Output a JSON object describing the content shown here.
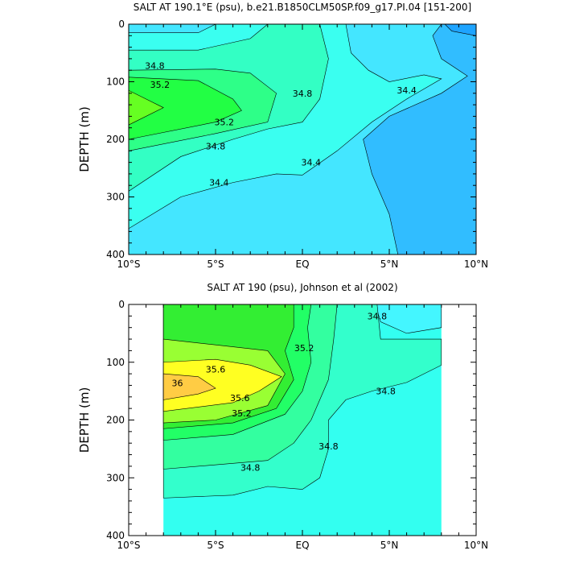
{
  "chart_data": [
    {
      "type": "contour",
      "title": "SALT AT 190.1°E (psu), b.e21.B1850CLM50SP.f09_g17.PI.04 [151-200]",
      "y_label": "DEPTH (m)",
      "xlim": [
        -10,
        10
      ],
      "ylim": [
        0,
        400
      ],
      "y_inverted": true,
      "xticks": [
        {
          "value": -10,
          "label": "10°S"
        },
        {
          "value": -5,
          "label": "5°S"
        },
        {
          "value": 0,
          "label": "EQ"
        },
        {
          "value": 5,
          "label": "5°N"
        },
        {
          "value": 10,
          "label": "10°N"
        }
      ],
      "yticks": [
        0,
        100,
        200,
        300,
        400
      ],
      "regions": [
        {
          "color": "#1ea4ff",
          "points": [
            [
              -10,
              0
            ],
            [
              10,
              0
            ],
            [
              10,
              400
            ],
            [
              -10,
              400
            ]
          ]
        },
        {
          "color": "#31bdff",
          "points": [
            [
              -10,
              0
            ],
            [
              8.2,
              0
            ],
            [
              8.6,
              12
            ],
            [
              10,
              20
            ],
            [
              10,
              400
            ],
            [
              -10,
              400
            ]
          ]
        },
        {
          "color": "#44e6ff",
          "points": [
            [
              -10,
              0
            ],
            [
              8,
              0
            ],
            [
              7.5,
              20
            ],
            [
              8,
              60
            ],
            [
              9.5,
              90
            ],
            [
              8,
              120
            ],
            [
              5,
              160
            ],
            [
              3.5,
              200
            ],
            [
              4,
              260
            ],
            [
              5,
              330
            ],
            [
              5.5,
              400
            ],
            [
              -10,
              400
            ]
          ]
        },
        {
          "color": "#3afff0",
          "points": [
            [
              -10,
              15
            ],
            [
              -6,
              15
            ],
            [
              -5,
              0
            ],
            [
              2.5,
              0
            ],
            [
              2.8,
              50
            ],
            [
              3.8,
              80
            ],
            [
              5,
              100
            ],
            [
              7,
              88
            ],
            [
              8,
              95
            ],
            [
              6,
              130
            ],
            [
              4,
              170
            ],
            [
              2,
              220
            ],
            [
              0,
              262
            ],
            [
              -1.5,
              260
            ],
            [
              -4,
              275
            ],
            [
              -7,
              300
            ],
            [
              -10,
              355
            ]
          ]
        },
        {
          "color": "#33ffc4",
          "points": [
            [
              -10,
              45
            ],
            [
              -6,
              45
            ],
            [
              -3,
              25
            ],
            [
              -2,
              0
            ],
            [
              1,
              0
            ],
            [
              1.5,
              60
            ],
            [
              1,
              130
            ],
            [
              0,
              170
            ],
            [
              -2,
              182
            ],
            [
              -4,
              200
            ],
            [
              -7,
              230
            ],
            [
              -10,
              290
            ]
          ]
        },
        {
          "color": "#2eff88",
          "points": [
            [
              -10,
              80
            ],
            [
              -5,
              78
            ],
            [
              -3,
              85
            ],
            [
              -1.5,
              120
            ],
            [
              -2,
              170
            ],
            [
              -5,
              190
            ],
            [
              -10,
              220
            ]
          ]
        },
        {
          "color": "#22ff44",
          "points": [
            [
              -10,
              92
            ],
            [
              -6,
              98
            ],
            [
              -4,
              130
            ],
            [
              -3.5,
              150
            ],
            [
              -5,
              170
            ],
            [
              -10,
              200
            ]
          ]
        },
        {
          "color": "#66ff22",
          "points": [
            [
              -10,
              115
            ],
            [
              -8,
              145
            ],
            [
              -10,
              175
            ]
          ]
        }
      ],
      "contour_labels": [
        {
          "value": 34.8,
          "x": -8.5,
          "y": 72
        },
        {
          "value": 35.2,
          "x": -8.2,
          "y": 105
        },
        {
          "value": 35.2,
          "x": -4.5,
          "y": 170
        },
        {
          "value": 34.8,
          "x": -5,
          "y": 212
        },
        {
          "value": 34.4,
          "x": -4.8,
          "y": 275
        },
        {
          "value": 34.4,
          "x": 0.5,
          "y": 240
        },
        {
          "value": 34.8,
          "x": 0,
          "y": 120
        },
        {
          "value": 34.4,
          "x": 6,
          "y": 115
        }
      ]
    },
    {
      "type": "contour",
      "title": "SALT AT 190 (psu), Johnson et al (2002)",
      "y_label": "DEPTH (m)",
      "xlim": [
        -10,
        10
      ],
      "ylim": [
        0,
        400
      ],
      "y_inverted": true,
      "xticks": [
        {
          "value": -10,
          "label": "10°S"
        },
        {
          "value": -5,
          "label": "5°S"
        },
        {
          "value": 0,
          "label": "EQ"
        },
        {
          "value": 5,
          "label": "5°N"
        },
        {
          "value": 10,
          "label": "10°N"
        }
      ],
      "yticks": [
        0,
        100,
        200,
        300,
        400
      ],
      "regions": [
        {
          "color": "#33fff0",
          "points": [
            [
              -8,
              0
            ],
            [
              8,
              0
            ],
            [
              8,
              400
            ],
            [
              -8,
              400
            ]
          ]
        },
        {
          "color": "#44f6ff",
          "points": [
            [
              4.2,
              0
            ],
            [
              8,
              0
            ],
            [
              8,
              40
            ],
            [
              6,
              50
            ],
            [
              4.5,
              30
            ]
          ]
        },
        {
          "color": "#33ffcc",
          "points": [
            [
              -8,
              335
            ],
            [
              -4,
              330
            ],
            [
              -2,
              315
            ],
            [
              0,
              320
            ],
            [
              1,
              300
            ],
            [
              1.5,
              250
            ],
            [
              1.5,
              200
            ],
            [
              2.5,
              165
            ],
            [
              4,
              150
            ],
            [
              6,
              135
            ],
            [
              8,
              105
            ],
            [
              8,
              60
            ],
            [
              6,
              60
            ],
            [
              4.5,
              60
            ],
            [
              4.3,
              0
            ],
            [
              -8,
              0
            ]
          ]
        },
        {
          "color": "#33ffa0",
          "points": [
            [
              -8,
              285
            ],
            [
              -4,
              275
            ],
            [
              -2,
              270
            ],
            [
              -0.5,
              240
            ],
            [
              0.5,
              200
            ],
            [
              1.5,
              130
            ],
            [
              1.8,
              60
            ],
            [
              2,
              0
            ],
            [
              -8,
              0
            ]
          ]
        },
        {
          "color": "#22ff66",
          "points": [
            [
              -8,
              235
            ],
            [
              -4,
              225
            ],
            [
              -1,
              190
            ],
            [
              0,
              150
            ],
            [
              0.5,
              100
            ],
            [
              0.3,
              40
            ],
            [
              0.5,
              0
            ],
            [
              -8,
              0
            ]
          ]
        },
        {
          "color": "#33ee33",
          "points": [
            [
              -8,
              215
            ],
            [
              -4,
              205
            ],
            [
              -1.5,
              180
            ],
            [
              -0.5,
              130
            ],
            [
              -1,
              80
            ],
            [
              -0.5,
              40
            ],
            [
              -0.5,
              0
            ],
            [
              -8,
              0
            ]
          ]
        },
        {
          "color": "#99ff33",
          "points": [
            [
              -8,
              60
            ],
            [
              -5,
              70
            ],
            [
              -2,
              80
            ],
            [
              -1,
              120
            ],
            [
              -2,
              175
            ],
            [
              -5,
              200
            ],
            [
              -8,
              205
            ]
          ]
        },
        {
          "color": "#ffff22",
          "points": [
            [
              -8,
              100
            ],
            [
              -5,
              95
            ],
            [
              -3,
              105
            ],
            [
              -1.2,
              125
            ],
            [
              -2.5,
              150
            ],
            [
              -4,
              170
            ],
            [
              -8,
              185
            ]
          ]
        },
        {
          "color": "#ffcc44",
          "points": [
            [
              -8,
              120
            ],
            [
              -6,
              125
            ],
            [
              -5,
              145
            ],
            [
              -6,
              155
            ],
            [
              -8,
              165
            ]
          ]
        }
      ],
      "contour_labels": [
        {
          "value": 34.8,
          "x": 4.3,
          "y": 20
        },
        {
          "value": 35.2,
          "x": 0.1,
          "y": 75
        },
        {
          "value": 35.6,
          "x": -5,
          "y": 112
        },
        {
          "value": 36,
          "x": -7.2,
          "y": 136
        },
        {
          "value": 35.6,
          "x": -3.6,
          "y": 162
        },
        {
          "value": 35.2,
          "x": -3.5,
          "y": 188
        },
        {
          "value": 34.8,
          "x": 4.8,
          "y": 150
        },
        {
          "value": 34.8,
          "x": 1.5,
          "y": 245
        },
        {
          "value": 34.8,
          "x": -3,
          "y": 282
        }
      ]
    }
  ]
}
